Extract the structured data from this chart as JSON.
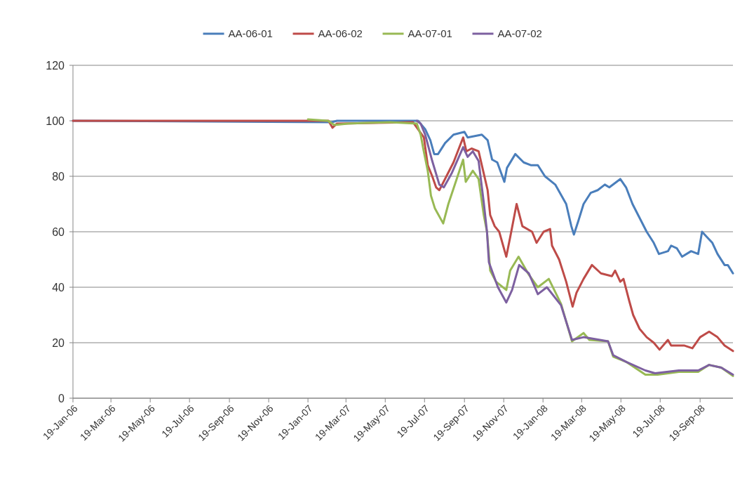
{
  "chart_data": {
    "type": "line",
    "legend": "top",
    "grid": "y",
    "marker": "none",
    "line_style": "solid",
    "xlim": [
      "2006-01-19",
      "2008-11-09"
    ],
    "ylim": [
      0,
      120
    ],
    "yticks": [
      0,
      20,
      40,
      60,
      80,
      100,
      120
    ],
    "xticks": [
      {
        "value": "2006-01-19",
        "label": "19-Jan-06"
      },
      {
        "value": "2006-03-19",
        "label": "19-Mar-06"
      },
      {
        "value": "2006-05-19",
        "label": "19-May-06"
      },
      {
        "value": "2006-07-19",
        "label": "19-Jul-06"
      },
      {
        "value": "2006-09-19",
        "label": "19-Sep-06"
      },
      {
        "value": "2006-11-19",
        "label": "19-Nov-06"
      },
      {
        "value": "2007-01-19",
        "label": "19-Jan-07"
      },
      {
        "value": "2007-03-19",
        "label": "19-Mar-07"
      },
      {
        "value": "2007-05-19",
        "label": "19-May-07"
      },
      {
        "value": "2007-07-19",
        "label": "19-Jul-07"
      },
      {
        "value": "2007-09-19",
        "label": "19-Sep-07"
      },
      {
        "value": "2007-11-19",
        "label": "19-Nov-07"
      },
      {
        "value": "2008-01-19",
        "label": "19-Jan-08"
      },
      {
        "value": "2008-03-19",
        "label": "19-Mar-08"
      },
      {
        "value": "2008-05-19",
        "label": "19-May-08"
      },
      {
        "value": "2008-07-19",
        "label": "19-Jul-08"
      },
      {
        "value": "2008-09-19",
        "label": "19-Sep-08"
      }
    ],
    "series": [
      {
        "name": "AA-06-01",
        "color": "#4a7ebb",
        "x": [
          "2006-01-19",
          "2007-02-25",
          "2007-03-05",
          "2007-07-09",
          "2007-07-20",
          "2007-07-28",
          "2007-08-03",
          "2007-08-09",
          "2007-08-20",
          "2007-09-02",
          "2007-09-19",
          "2007-09-24",
          "2007-10-16",
          "2007-10-25",
          "2007-11-01",
          "2007-11-09",
          "2007-11-20",
          "2007-11-24",
          "2007-12-07",
          "2007-12-20",
          "2007-12-31",
          "2008-01-11",
          "2008-01-22",
          "2008-02-07",
          "2008-02-24",
          "2008-03-03",
          "2008-03-07",
          "2008-03-14",
          "2008-03-22",
          "2008-04-02",
          "2008-04-13",
          "2008-04-24",
          "2008-05-01",
          "2008-05-18",
          "2008-05-27",
          "2008-06-06",
          "2008-06-17",
          "2008-06-28",
          "2008-07-09",
          "2008-07-17",
          "2008-07-31",
          "2008-08-05",
          "2008-08-14",
          "2008-08-22",
          "2008-09-05",
          "2008-09-16",
          "2008-09-22",
          "2008-09-30",
          "2008-10-08",
          "2008-10-16",
          "2008-10-27",
          "2008-11-01",
          "2008-11-09"
        ],
        "values": [
          100,
          99.5,
          100,
          100,
          97,
          93,
          88,
          88,
          92,
          95,
          96,
          94,
          95,
          93,
          86,
          85,
          78,
          83,
          88,
          85,
          84,
          84,
          80,
          77,
          70,
          62,
          59,
          64,
          70,
          74,
          75,
          77,
          76,
          79,
          76,
          70,
          65,
          60,
          56,
          52,
          53,
          55,
          54,
          51,
          53,
          52,
          60,
          58,
          56,
          52,
          48,
          48,
          45
        ]
      },
      {
        "name": "AA-06-02",
        "color": "#be4b48",
        "x": [
          "2006-01-19",
          "2007-02-20",
          "2007-02-26",
          "2007-03-05",
          "2007-07-01",
          "2007-07-18",
          "2007-07-24",
          "2007-07-31",
          "2007-08-06",
          "2007-08-11",
          "2007-08-22",
          "2007-09-02",
          "2007-09-17",
          "2007-09-22",
          "2007-09-30",
          "2007-10-11",
          "2007-10-18",
          "2007-10-25",
          "2007-10-29",
          "2007-11-05",
          "2007-11-12",
          "2007-11-23",
          "2007-11-29",
          "2007-12-09",
          "2007-12-18",
          "2008-01-02",
          "2008-01-09",
          "2008-01-20",
          "2008-01-30",
          "2008-02-02",
          "2008-02-13",
          "2008-02-24",
          "2008-03-05",
          "2008-03-11",
          "2008-03-22",
          "2008-04-04",
          "2008-04-18",
          "2008-05-05",
          "2008-05-10",
          "2008-05-18",
          "2008-05-23",
          "2008-06-01",
          "2008-06-07",
          "2008-06-17",
          "2008-06-28",
          "2008-07-09",
          "2008-07-18",
          "2008-07-31",
          "2008-08-05",
          "2008-08-25",
          "2008-09-07",
          "2008-09-19",
          "2008-10-03",
          "2008-10-16",
          "2008-10-27",
          "2008-11-09"
        ],
        "values": [
          100,
          100,
          97.5,
          99,
          99.5,
          94,
          84,
          80,
          76,
          75,
          80,
          85,
          94,
          89,
          90,
          89,
          82,
          75,
          66,
          62,
          60,
          51,
          58,
          70,
          62,
          60,
          56,
          60,
          61,
          55,
          50,
          42,
          33,
          38,
          43,
          48,
          45,
          44,
          46,
          42,
          43,
          35,
          30,
          25,
          22,
          20,
          17.5,
          21,
          19,
          19,
          18,
          22,
          24,
          22,
          19,
          17
        ]
      },
      {
        "name": "AA-07-01",
        "color": "#98b954",
        "x": [
          "2007-01-19",
          "2007-02-19",
          "2007-03-01",
          "2007-03-22",
          "2007-05-26",
          "2007-07-07",
          "2007-07-13",
          "2007-07-17",
          "2007-07-24",
          "2007-07-29",
          "2007-08-04",
          "2007-08-17",
          "2007-08-25",
          "2007-09-17",
          "2007-09-21",
          "2007-10-02",
          "2007-10-11",
          "2007-10-19",
          "2007-10-24",
          "2007-10-29",
          "2007-11-07",
          "2007-11-23",
          "2007-11-29",
          "2007-12-12",
          "2007-12-28",
          "2008-01-11",
          "2008-01-28",
          "2008-02-16",
          "2008-03-04",
          "2008-03-22",
          "2008-03-31",
          "2008-04-29",
          "2008-05-07",
          "2008-05-28",
          "2008-06-26",
          "2008-07-15",
          "2008-08-17",
          "2008-09-16",
          "2008-10-03",
          "2008-10-22",
          "2008-11-09"
        ],
        "values": [
          100.5,
          100,
          98.5,
          99,
          99.5,
          99,
          95,
          90,
          82,
          73,
          68.5,
          63,
          70,
          86,
          78,
          82,
          79,
          66,
          60,
          46,
          42,
          39,
          46,
          51,
          44.5,
          40,
          43,
          34,
          20.5,
          23.5,
          21,
          20.5,
          15,
          13,
          8.5,
          8.5,
          9.5,
          9.5,
          12,
          11,
          8
        ]
      },
      {
        "name": "AA-07-02",
        "color": "#7d60a0",
        "x": [
          "2007-07-07",
          "2007-07-13",
          "2007-07-20",
          "2007-07-31",
          "2007-08-11",
          "2007-08-18",
          "2007-08-30",
          "2007-09-17",
          "2007-09-24",
          "2007-10-02",
          "2007-10-11",
          "2007-10-19",
          "2007-10-24",
          "2007-10-27",
          "2007-11-10",
          "2007-11-23",
          "2007-12-02",
          "2007-12-13",
          "2007-12-28",
          "2008-01-11",
          "2008-01-25",
          "2008-02-16",
          "2008-03-04",
          "2008-03-22",
          "2008-04-29",
          "2008-05-07",
          "2008-05-28",
          "2008-06-26",
          "2008-07-11",
          "2008-08-17",
          "2008-09-16",
          "2008-10-03",
          "2008-10-22",
          "2008-11-09"
        ],
        "values": [
          100,
          99,
          95,
          85.5,
          77,
          76,
          81,
          90.5,
          87,
          89,
          85.5,
          70.5,
          60,
          49,
          40,
          34.5,
          39,
          48,
          45,
          37.5,
          40,
          33.5,
          21,
          22,
          20.5,
          15.5,
          13,
          10,
          9,
          10,
          10,
          12,
          11,
          8.5
        ]
      }
    ]
  }
}
